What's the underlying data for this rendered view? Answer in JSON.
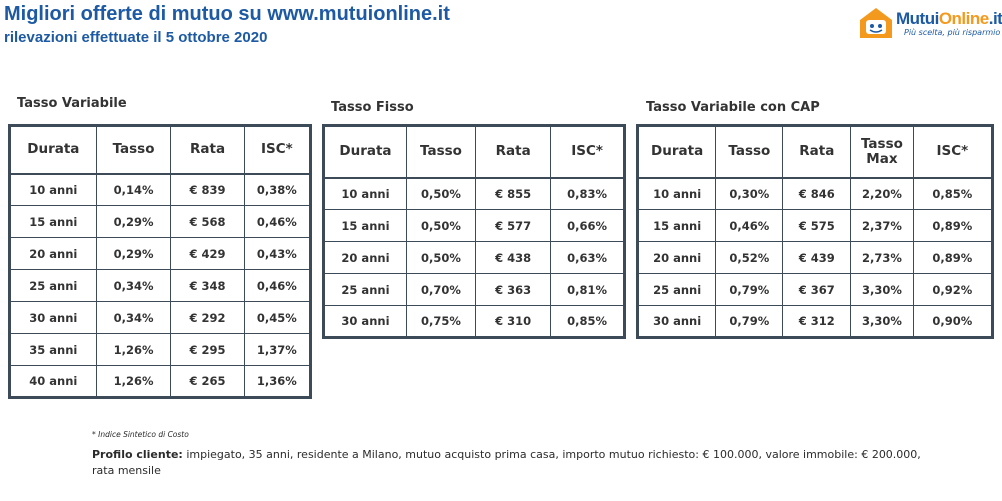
{
  "header": {
    "title": "Migliori offerte di mutuo su www.mutuionline.it",
    "subtitle": "rilevazioni effettuate il 5 ottobre 2020"
  },
  "logo": {
    "parts": [
      "Mutui",
      "Online",
      ".it"
    ],
    "tagline": "Più scelta, più risparmio"
  },
  "tables": [
    {
      "title": "Tasso Variabile",
      "columns": [
        "Durata",
        "Tasso",
        "Rata",
        "ISC*"
      ],
      "rows": [
        [
          "10 anni",
          "0,14%",
          "€ 839",
          "0,38%"
        ],
        [
          "15 anni",
          "0,29%",
          "€ 568",
          "0,46%"
        ],
        [
          "20 anni",
          "0,29%",
          "€ 429",
          "0,43%"
        ],
        [
          "25 anni",
          "0,34%",
          "€ 348",
          "0,46%"
        ],
        [
          "30 anni",
          "0,34%",
          "€ 292",
          "0,45%"
        ],
        [
          "35 anni",
          "1,26%",
          "€ 295",
          "1,37%"
        ],
        [
          "40 anni",
          "1,26%",
          "€ 265",
          "1,36%"
        ]
      ]
    },
    {
      "title": "Tasso Fisso",
      "columns": [
        "Durata",
        "Tasso",
        "Rata",
        "ISC*"
      ],
      "rows": [
        [
          "10 anni",
          "0,50%",
          "€ 855",
          "0,83%"
        ],
        [
          "15 anni",
          "0,50%",
          "€ 577",
          "0,66%"
        ],
        [
          "20 anni",
          "0,50%",
          "€ 438",
          "0,63%"
        ],
        [
          "25 anni",
          "0,70%",
          "€ 363",
          "0,81%"
        ],
        [
          "30 anni",
          "0,75%",
          "€ 310",
          "0,85%"
        ]
      ]
    },
    {
      "title": "Tasso Variabile con CAP",
      "columns": [
        "Durata",
        "Tasso",
        "Rata",
        "Tasso Max",
        "ISC*"
      ],
      "rows": [
        [
          "10 anni",
          "0,30%",
          "€ 846",
          "2,20%",
          "0,85%"
        ],
        [
          "15 anni",
          "0,46%",
          "€ 575",
          "2,37%",
          "0,89%"
        ],
        [
          "20 anni",
          "0,52%",
          "€ 439",
          "2,73%",
          "0,89%"
        ],
        [
          "25 anni",
          "0,79%",
          "€ 367",
          "3,30%",
          "0,92%"
        ],
        [
          "30 anni",
          "0,79%",
          "€ 312",
          "3,30%",
          "0,90%"
        ]
      ]
    }
  ],
  "footnote": "* Indice Sintetico di Costo",
  "profile": {
    "label": "Profilo cliente:",
    "text": "impiegato, 35 anni, residente a Milano, mutuo acquisto prima casa, importo mutuo richiesto: € 100.000, valore immobile: € 200.000, rata mensile"
  }
}
